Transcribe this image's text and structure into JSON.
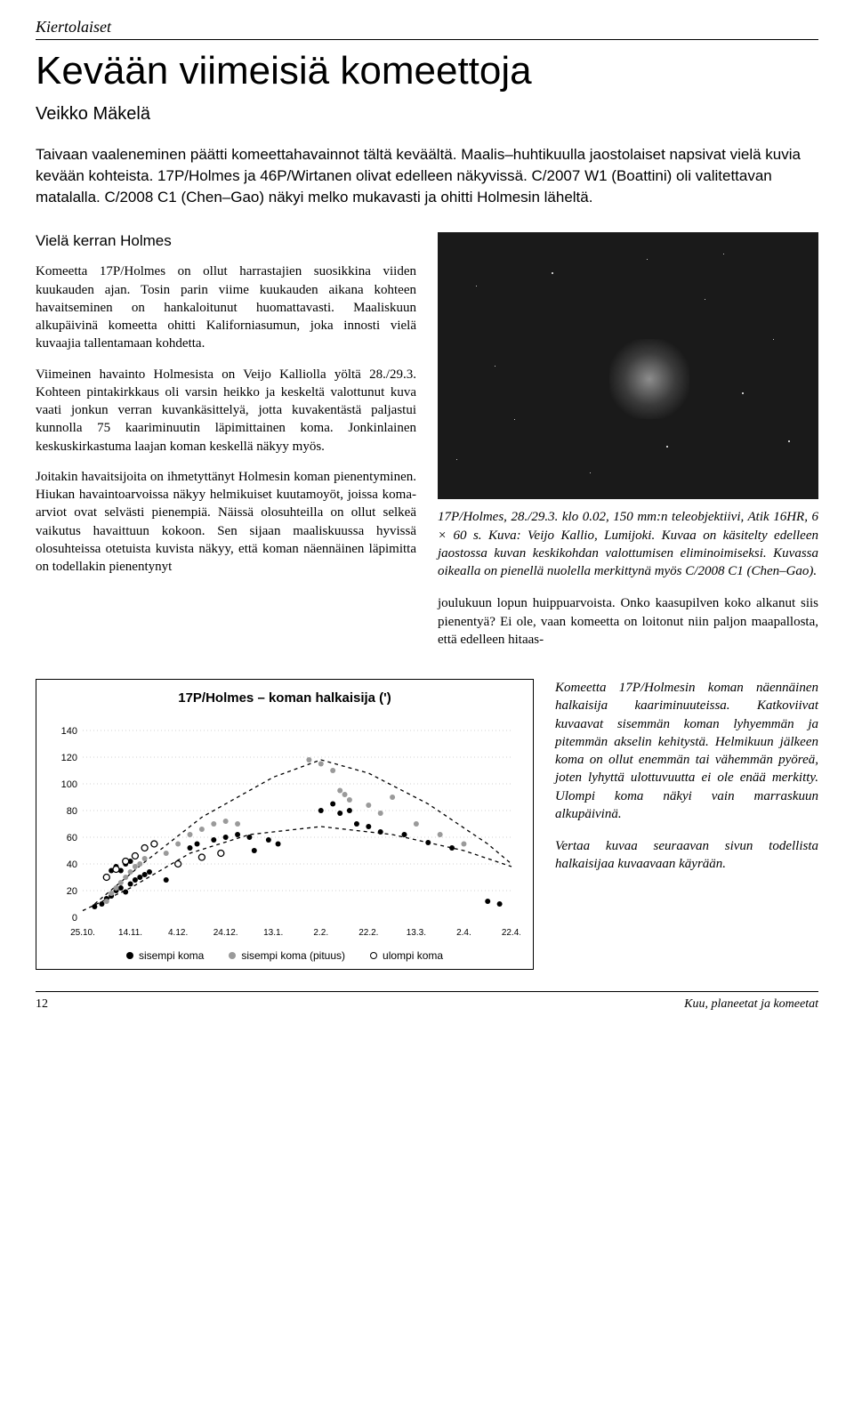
{
  "category": "Kiertolaiset",
  "title": "Kevään viimeisiä komeettoja",
  "author": "Veikko Mäkelä",
  "lead": "Taivaan vaaleneminen päätti komeettahavainnot tältä keväältä. Maalis–huhtikuulla jaostolaiset napsivat vielä kuvia kevään kohteista. 17P/Holmes ja 46P/Wirtanen olivat edelleen näkyvissä. C/2007 W1 (Boattini) oli valitettavan matalalla. C/2008 C1 (Chen–Gao) näkyi melko mukavasti ja ohitti Holmesin läheltä.",
  "subhead1": "Vielä kerran Holmes",
  "col_left": {
    "p1": "Komeetta 17P/Holmes on ollut harrastajien suosikkina viiden kuukauden ajan. Tosin parin viime kuukauden aikana kohteen havaitseminen on hankaloitunut huomattavasti. Maaliskuun alkupäivinä komeetta ohitti Kaliforniasumun, joka innosti vielä kuvaajia tallentamaan kohdetta.",
    "p2": "Viimeinen havainto Holmesista on Veijo Kalliolla yöltä 28./29.3. Kohteen pintakirkkaus oli varsin heikko ja keskeltä valottunut kuva vaati jonkun verran kuvankäsittelyä, jotta kuvakentästä paljastui kunnolla 75 kaariminuutin läpimittainen koma. Jonkinlainen keskuskirkastuma laajan koman keskellä näkyy myös.",
    "p3": "Joitakin havaitsijoita on ihmetyttänyt Holmesin koman pienentyminen. Hiukan havaintoarvoissa näkyy helmikuiset kuutamoyöt, joissa koma-arviot ovat selvästi pienempiä. Näissä olosuhteilla on ollut selkeä vaikutus havaittuun kokoon. Sen sijaan maaliskuussa hyvissä olosuhteissa otetuista kuvista näkyy, että koman näennäinen läpimitta on todellakin pienentynyt"
  },
  "photo_caption": "17P/Holmes, 28./29.3. klo 0.02, 150 mm:n teleobjektiivi, Atik 16HR, 6 × 60 s. Kuva: Veijo Kallio, Lumijoki. Kuvaa on käsitelty edelleen jaostossa kuvan keskikohdan valottumisen eliminoimiseksi. Kuvassa oikealla on pienellä nuolella merkittynä myös C/2008 C1 (Chen–Gao).",
  "col_right": {
    "p1": "joulukuun lopun huippuarvoista. Onko kaasupilven koko alkanut siis pienentyä? Ei ole, vaan komeetta on loitonut niin paljon maapallosta, että edelleen hitaas-"
  },
  "chart": {
    "type": "scatter",
    "title": "17P/Holmes – koman halkaisija (')",
    "ylim": [
      0,
      150
    ],
    "ytick_step": 20,
    "x_labels": [
      "25.10.",
      "14.11.",
      "4.12.",
      "24.12.",
      "13.1.",
      "2.2.",
      "22.2.",
      "13.3.",
      "2.4.",
      "22.4."
    ],
    "grid_color": "#d0d0d0",
    "background_color": "#ffffff",
    "series": {
      "inner": {
        "label": "sisempi koma",
        "color": "#000000",
        "points": [
          [
            5,
            8
          ],
          [
            8,
            10
          ],
          [
            10,
            14
          ],
          [
            12,
            16
          ],
          [
            14,
            20
          ],
          [
            16,
            22
          ],
          [
            18,
            19
          ],
          [
            20,
            25
          ],
          [
            22,
            28
          ],
          [
            24,
            30
          ],
          [
            26,
            32
          ],
          [
            28,
            34
          ],
          [
            12,
            35
          ],
          [
            14,
            38
          ],
          [
            16,
            35
          ],
          [
            18,
            40
          ],
          [
            20,
            42
          ],
          [
            35,
            28
          ],
          [
            40,
            40
          ],
          [
            45,
            52
          ],
          [
            48,
            55
          ],
          [
            55,
            58
          ],
          [
            60,
            60
          ],
          [
            65,
            62
          ],
          [
            70,
            60
          ],
          [
            72,
            50
          ],
          [
            78,
            58
          ],
          [
            82,
            55
          ],
          [
            100,
            80
          ],
          [
            105,
            85
          ],
          [
            108,
            78
          ],
          [
            112,
            80
          ],
          [
            115,
            70
          ],
          [
            120,
            68
          ],
          [
            125,
            64
          ],
          [
            135,
            62
          ],
          [
            145,
            56
          ],
          [
            155,
            52
          ],
          [
            170,
            12
          ],
          [
            175,
            10
          ]
        ]
      },
      "inner_len": {
        "label": "sisempi koma (pituus)",
        "color": "#9a9a9a",
        "points": [
          [
            10,
            12
          ],
          [
            12,
            18
          ],
          [
            14,
            22
          ],
          [
            16,
            26
          ],
          [
            18,
            30
          ],
          [
            20,
            34
          ],
          [
            22,
            38
          ],
          [
            24,
            40
          ],
          [
            26,
            44
          ],
          [
            35,
            48
          ],
          [
            40,
            55
          ],
          [
            45,
            62
          ],
          [
            50,
            66
          ],
          [
            55,
            70
          ],
          [
            60,
            72
          ],
          [
            65,
            70
          ],
          [
            95,
            118
          ],
          [
            100,
            115
          ],
          [
            105,
            110
          ],
          [
            108,
            95
          ],
          [
            110,
            92
          ],
          [
            112,
            88
          ],
          [
            120,
            84
          ],
          [
            125,
            78
          ],
          [
            130,
            90
          ],
          [
            140,
            70
          ],
          [
            150,
            62
          ],
          [
            160,
            55
          ]
        ]
      },
      "outer": {
        "label": "ulompi koma",
        "color_stroke": "#000000",
        "color_fill": "#ffffff",
        "points": [
          [
            10,
            30
          ],
          [
            14,
            36
          ],
          [
            18,
            42
          ],
          [
            22,
            46
          ],
          [
            26,
            52
          ],
          [
            30,
            55
          ],
          [
            40,
            40
          ],
          [
            50,
            45
          ],
          [
            58,
            48
          ]
        ]
      }
    },
    "fit_inner_dash": "4,4",
    "fit_inner_path": [
      [
        0,
        5
      ],
      [
        20,
        22
      ],
      [
        45,
        48
      ],
      [
        70,
        62
      ],
      [
        100,
        68
      ],
      [
        130,
        62
      ],
      [
        160,
        50
      ],
      [
        180,
        38
      ]
    ],
    "fit_outer_path": [
      [
        5,
        10
      ],
      [
        25,
        40
      ],
      [
        50,
        75
      ],
      [
        80,
        105
      ],
      [
        100,
        118
      ],
      [
        120,
        108
      ],
      [
        145,
        85
      ],
      [
        170,
        55
      ],
      [
        180,
        40
      ]
    ]
  },
  "side_notes": {
    "p1": "Komeetta 17P/Holmesin koman näennäinen halkaisija kaariminuuteissa. Katkoviivat kuvaavat sisemmän koman lyhyemmän ja pitemmän akselin kehitystä. Helmikuun jälkeen koma on ollut enemmän tai vähemmän pyöreä, joten lyhyttä ulottuvuutta ei ole enää merkitty. Ulompi koma näkyi vain marraskuun alkupäivinä.",
    "p2": "Vertaa kuvaa seuraavan sivun todellista halkaisijaa kuvaavaan käyrään."
  },
  "footer": {
    "page": "12",
    "section": "Kuu, planeetat ja komeetat"
  }
}
